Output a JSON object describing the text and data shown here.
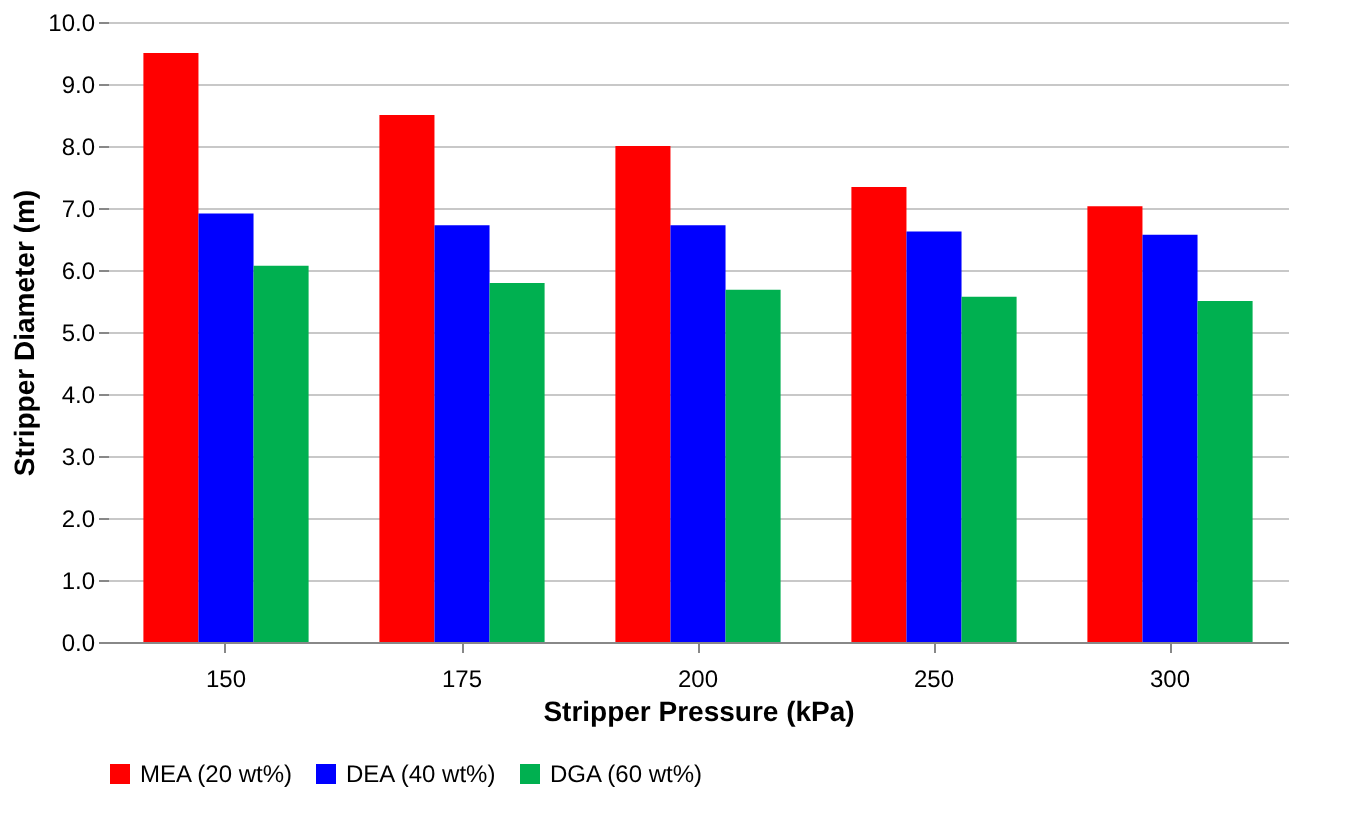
{
  "chart_data": {
    "type": "bar",
    "xlabel": "Stripper Pressure (kPa)",
    "ylabel": "Stripper Diameter (m)",
    "categories": [
      "150",
      "175",
      "200",
      "250",
      "300"
    ],
    "series": [
      {
        "name": "MEA (20 wt%)",
        "color": "#ff0000",
        "values": [
          9.5,
          8.5,
          8.0,
          7.34,
          7.03
        ]
      },
      {
        "name": "DEA (40 wt%)",
        "color": "#0000ff",
        "values": [
          6.91,
          6.72,
          6.72,
          6.62,
          6.57
        ]
      },
      {
        "name": "DGA (60 wt%)",
        "color": "#00b050",
        "values": [
          6.07,
          5.79,
          5.68,
          5.57,
          5.5
        ]
      }
    ],
    "ylim": [
      0,
      10
    ],
    "yticks": [
      {
        "value": 0,
        "label": "0.0"
      },
      {
        "value": 1,
        "label": "1.0"
      },
      {
        "value": 2,
        "label": "2.0"
      },
      {
        "value": 3,
        "label": "3.0"
      },
      {
        "value": 4,
        "label": "4.0"
      },
      {
        "value": 5,
        "label": "5.0"
      },
      {
        "value": 6,
        "label": "6.0"
      },
      {
        "value": 7,
        "label": "7.0"
      },
      {
        "value": 8,
        "label": "8.0"
      },
      {
        "value": 9,
        "label": "9.0"
      },
      {
        "value": 10,
        "label": "10.0"
      }
    ],
    "grid": "y",
    "legend": "bottom"
  }
}
